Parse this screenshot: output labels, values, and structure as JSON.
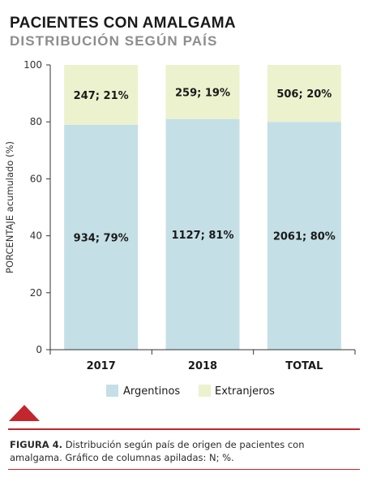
{
  "title": "PACIENTES CON AMALGAMA",
  "subtitle": "DISTRIBUCIÓN SEGÚN PAÍS",
  "colors": {
    "argentinos": "#c5dfe6",
    "extranjeros": "#ecf2cd",
    "accent": "#c1272d"
  },
  "chart_data": {
    "type": "bar",
    "stacked": true,
    "title": "PACIENTES CON AMALGAMA",
    "subtitle": "DISTRIBUCIÓN SEGÚN PAÍS",
    "xlabel": "",
    "ylabel": "PORCENTAJE acumulado (%)",
    "ylim": [
      0,
      100
    ],
    "yticks": [
      "0",
      "20",
      "40",
      "60",
      "80",
      "100"
    ],
    "categories": [
      "2017",
      "2018",
      "TOTAL"
    ],
    "series": [
      {
        "name": "Argentinos",
        "values": [
          79,
          81,
          80
        ],
        "labels": [
          "934; 79%",
          "1127; 81%",
          "2061; 80%"
        ]
      },
      {
        "name": "Extranjeros",
        "values": [
          21,
          19,
          20
        ],
        "labels": [
          "247; 21%",
          "259; 19%",
          "506; 20%"
        ]
      }
    ],
    "legend": "bottom",
    "grid": false
  },
  "caption": {
    "label": "FIGURA 4.",
    "text": "Distribución según país de origen de pacientes con amalgama. Gráfico de columnas apiladas: N; %."
  }
}
